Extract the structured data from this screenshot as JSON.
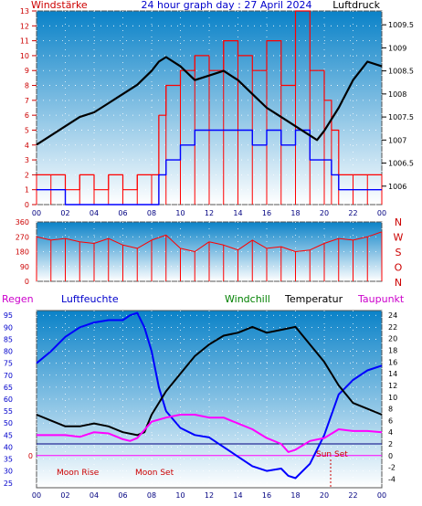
{
  "header": {
    "left_label": "Windstärke",
    "title": "24 hour graph day : 27 April 2024",
    "right_label": "Luftdruck"
  },
  "legend": {
    "regen": "Regen",
    "luftfeuchte": "Luftfeuchte",
    "windchill": "Windchill",
    "temperatur": "Temperatur",
    "taupunkt": "Taupunkt"
  },
  "annotations": {
    "moon_rise": "Moon Rise",
    "moon_set": "Moon Set",
    "sun_set": "Sun Set"
  },
  "colors": {
    "bg_top": "#0a82c8",
    "bg_bottom": "#ffffff",
    "wind_gust": "#ff0000",
    "wind_speed": "#0000ff",
    "pressure": "#000000",
    "humidity": "#0000ff",
    "temperature": "#000000",
    "dewpoint": "#ff00ff",
    "freeze_line": "#ff00ff",
    "rain_line": "#000080"
  },
  "chart_data": [
    {
      "type": "line",
      "name": "wind_pressure",
      "x_ticks": [
        "00",
        "02",
        "04",
        "06",
        "08",
        "10",
        "12",
        "14",
        "16",
        "18",
        "20",
        "22",
        "00"
      ],
      "y_left_ticks": [
        0,
        1,
        2,
        3,
        4,
        5,
        6,
        7,
        8,
        9,
        10,
        11,
        12,
        13
      ],
      "y_right_ticks": [
        1006,
        1006.5,
        1007,
        1007.5,
        1008,
        1008.5,
        1009,
        1009.5
      ],
      "ylim_left": [
        0,
        13
      ],
      "ylim_right": [
        1005.6,
        1009.8
      ],
      "series": [
        {
          "name": "Luftdruck",
          "axis": "right",
          "x": [
            0,
            1,
            2,
            3,
            4,
            5,
            6,
            7,
            8,
            8.5,
            9,
            10,
            11,
            12,
            13,
            14,
            15,
            16,
            17,
            18,
            19,
            19.5,
            20,
            21,
            22,
            23,
            24
          ],
          "y": [
            1006.9,
            1007.1,
            1007.3,
            1007.5,
            1007.6,
            1007.8,
            1008.0,
            1008.2,
            1008.5,
            1008.7,
            1008.8,
            1008.6,
            1008.3,
            1008.4,
            1008.5,
            1008.3,
            1008.0,
            1007.7,
            1007.5,
            1007.3,
            1007.1,
            1007.0,
            1007.2,
            1007.7,
            1008.3,
            1008.7,
            1008.6
          ]
        },
        {
          "name": "Böen",
          "axis": "left",
          "x": [
            0,
            1,
            2,
            3,
            4,
            5,
            6,
            7,
            8,
            8.5,
            9,
            10,
            11,
            12,
            13,
            14,
            15,
            16,
            17,
            18,
            19,
            20,
            20.5,
            21,
            22,
            23,
            24
          ],
          "y": [
            2,
            2,
            1,
            2,
            1,
            2,
            1,
            2,
            2,
            6,
            8,
            9,
            10,
            9,
            11,
            10,
            9,
            11,
            8,
            13,
            9,
            7,
            5,
            2,
            2,
            2,
            2
          ]
        },
        {
          "name": "Wind",
          "axis": "left",
          "x": [
            0,
            1,
            2,
            3,
            4,
            5,
            6,
            7,
            8,
            8.5,
            9,
            10,
            11,
            12,
            13,
            14,
            15,
            16,
            17,
            18,
            19,
            20,
            20.5,
            21,
            22,
            23,
            24
          ],
          "y": [
            1,
            1,
            0,
            0,
            0,
            0,
            0,
            0,
            0,
            2,
            3,
            4,
            5,
            5,
            5,
            5,
            4,
            5,
            4,
            5,
            3,
            3,
            2,
            1,
            1,
            1,
            1
          ]
        }
      ]
    },
    {
      "type": "line",
      "name": "wind_direction",
      "x_ticks": [
        "00",
        "02",
        "04",
        "06",
        "08",
        "10",
        "12",
        "14",
        "16",
        "18",
        "20",
        "22",
        "00"
      ],
      "y_left_ticks": [
        0,
        90,
        180,
        270,
        360
      ],
      "y_right_ticks": [
        "N",
        "W",
        "S",
        "O",
        "N"
      ],
      "ylim": [
        0,
        360
      ],
      "series": [
        {
          "name": "Windrichtung",
          "x": [
            0,
            1,
            2,
            3,
            4,
            5,
            6,
            7,
            8,
            9,
            10,
            11,
            12,
            13,
            14,
            15,
            16,
            17,
            18,
            19,
            20,
            21,
            22,
            23,
            24
          ],
          "y": [
            270,
            250,
            260,
            240,
            230,
            260,
            220,
            200,
            250,
            280,
            200,
            180,
            240,
            220,
            190,
            250,
            200,
            210,
            180,
            190,
            230,
            260,
            250,
            270,
            300
          ]
        }
      ]
    },
    {
      "type": "line",
      "name": "temp_humidity",
      "x_ticks": [
        "00",
        "02",
        "04",
        "06",
        "08",
        "10",
        "12",
        "14",
        "16",
        "18",
        "20",
        "22",
        "00"
      ],
      "y_left_ticks": [
        25,
        30,
        35,
        40,
        45,
        50,
        55,
        60,
        65,
        70,
        75,
        80,
        85,
        90,
        95
      ],
      "y_right_ticks": [
        -4,
        -2,
        0,
        2,
        4,
        6,
        8,
        10,
        12,
        14,
        16,
        18,
        20,
        22,
        24
      ],
      "ylim_left": [
        23,
        97
      ],
      "ylim_right": [
        -5.5,
        24.8
      ],
      "series": [
        {
          "name": "Luftfeuchte",
          "axis": "left",
          "x": [
            0,
            1,
            2,
            3,
            4,
            5,
            6,
            6.5,
            7,
            7.5,
            8,
            8.5,
            9,
            10,
            11,
            12,
            13,
            14,
            15,
            16,
            17,
            17.5,
            18,
            19,
            20,
            21,
            22,
            23,
            24
          ],
          "y": [
            75,
            80,
            86,
            90,
            92,
            93,
            93,
            95,
            96,
            90,
            80,
            65,
            55,
            48,
            45,
            44,
            40,
            36,
            32,
            30,
            31,
            28,
            27,
            33,
            45,
            62,
            68,
            72,
            74
          ]
        },
        {
          "name": "Temperatur",
          "axis": "right",
          "x": [
            0,
            1,
            2,
            3,
            4,
            5,
            6,
            7,
            7.5,
            8,
            9,
            10,
            11,
            12,
            13,
            14,
            15,
            16,
            17,
            18,
            19,
            20,
            21,
            22,
            23,
            24
          ],
          "y": [
            7,
            6,
            5,
            5,
            5.5,
            5,
            4,
            3.5,
            4,
            7,
            11,
            14,
            17,
            19,
            20.5,
            21,
            22,
            21,
            21.5,
            22,
            19,
            16,
            12,
            9,
            8,
            7
          ]
        },
        {
          "name": "Taupunkt",
          "axis": "right",
          "x": [
            0,
            1,
            2,
            3,
            4,
            5,
            6,
            6.5,
            7,
            8,
            9,
            10,
            11,
            12,
            13,
            14,
            15,
            16,
            17,
            17.5,
            18,
            19,
            20,
            21,
            22,
            23,
            24
          ],
          "y": [
            3.5,
            3.5,
            3.5,
            3.2,
            4,
            3.8,
            2.8,
            2.5,
            3,
            5.8,
            6.5,
            7,
            7,
            6.5,
            6.5,
            5.5,
            4.5,
            3,
            2,
            0.6,
            1,
            2.5,
            3,
            4.5,
            4.2,
            4.2,
            4
          ]
        }
      ]
    }
  ]
}
